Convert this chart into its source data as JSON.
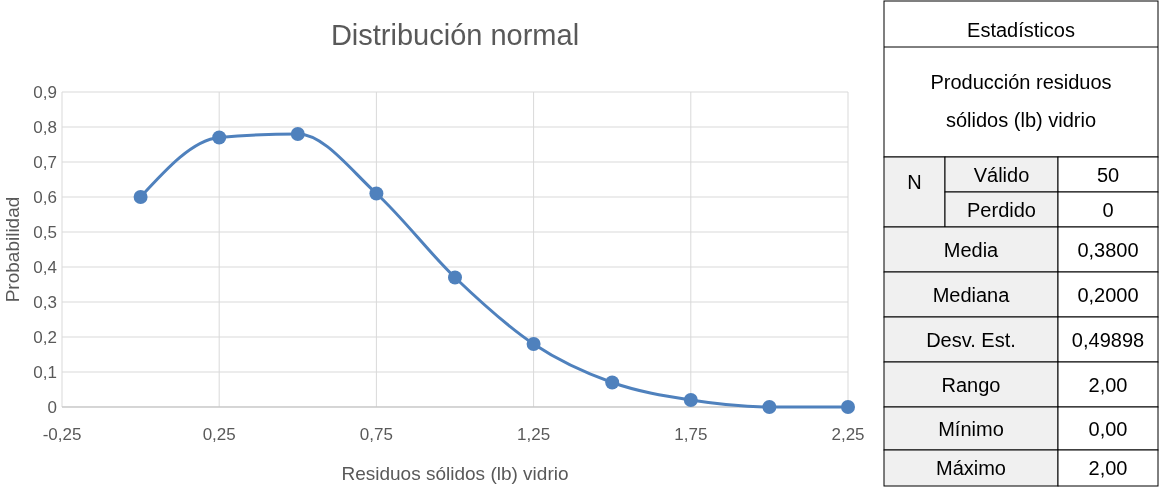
{
  "chart_data": [
    {
      "type": "line",
      "title": "Distribución normal",
      "xlabel": "Residuos sólidos (lb) vidrio",
      "ylabel": "Probabilidad",
      "x": [
        0,
        0.25,
        0.5,
        0.75,
        1,
        1.25,
        1.5,
        1.75,
        2,
        2.25
      ],
      "series": [
        {
          "color": "#4f81bd",
          "values": [
            0.6,
            0.77,
            0.78,
            0.61,
            0.37,
            0.18,
            0.07,
            0.02,
            0,
            0
          ]
        }
      ],
      "xlim": [
        -0.25,
        2.25
      ],
      "xticks": [
        {
          "value": -0.25,
          "label": "-0,25"
        },
        {
          "value": 0.25,
          "label": "0,25"
        },
        {
          "value": 0.75,
          "label": "0,75"
        },
        {
          "value": 1.25,
          "label": "1,25"
        },
        {
          "value": 1.75,
          "label": "1,75"
        },
        {
          "value": 2.25,
          "label": "2,25"
        }
      ],
      "ylim": [
        0,
        0.9
      ],
      "yticks": [
        0,
        {
          "value": 0.1,
          "label": "0,1"
        },
        {
          "value": 0.2,
          "label": "0,2"
        },
        {
          "value": 0.3,
          "label": "0,3"
        },
        {
          "value": 0.4,
          "label": "0,4"
        },
        {
          "value": 0.5,
          "label": "0,5"
        },
        {
          "value": 0.6,
          "label": "0,6"
        },
        {
          "value": 0.7,
          "label": "0,7"
        },
        {
          "value": 0.8,
          "label": "0,8"
        },
        {
          "value": 0.9,
          "label": "0,9"
        }
      ],
      "grid": true,
      "marker": "circle",
      "line_style": "solid"
    },
    {
      "type": "other",
      "title": "Estadísticos",
      "subtitle": "Producción residuos sólidos (lb) vidrio",
      "annotations": [
        "N"
      ],
      "categories": [
        "Válido",
        "Perdido",
        "Media",
        "Mediana",
        "Desv. Est.",
        "Rango",
        "Mínimo",
        "Máximo"
      ],
      "value_labels": [
        "50",
        "0",
        "0,3800",
        "0,2000",
        "0,49898",
        "2,00",
        "0,00",
        "2,00"
      ]
    }
  ]
}
